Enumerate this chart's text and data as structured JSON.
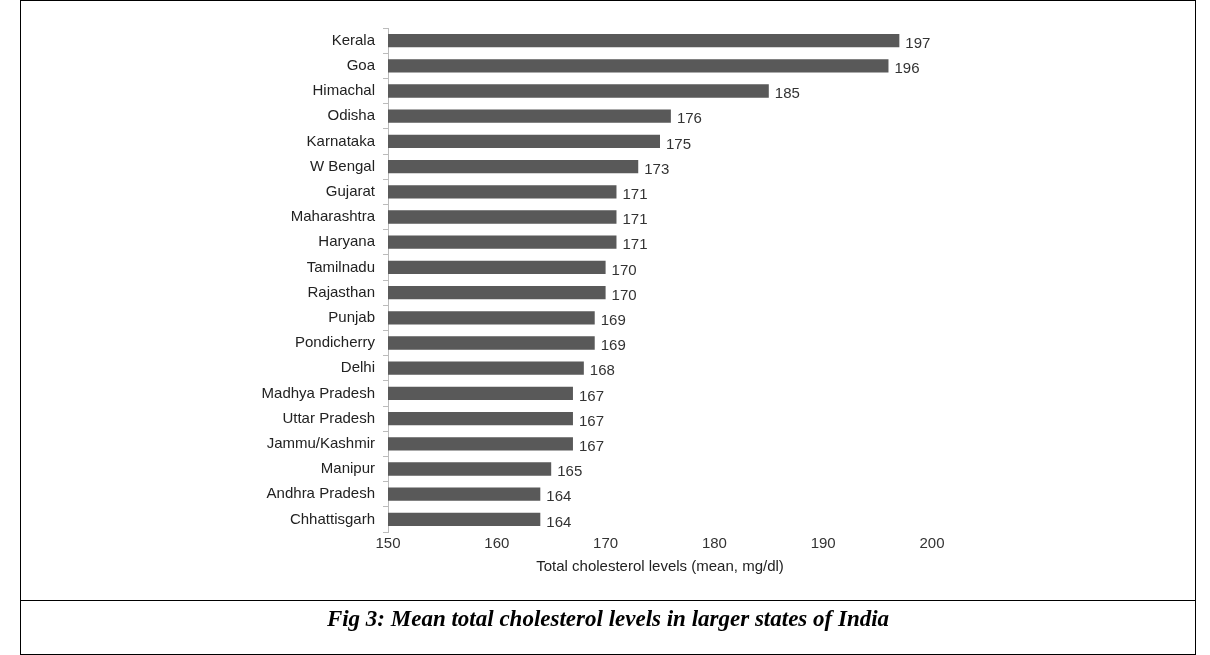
{
  "chart_data": {
    "type": "bar",
    "orientation": "horizontal",
    "title": "Fig 3:  Mean total cholesterol levels in larger states of India",
    "xlabel": "Total cholesterol levels (mean, mg/dl)",
    "categories": [
      "Kerala",
      "Goa",
      "Himachal",
      "Odisha",
      "Karnataka",
      "W Bengal",
      "Gujarat",
      "Maharashtra",
      "Haryana",
      "Tamilnadu",
      "Rajasthan",
      "Punjab",
      "Pondicherry",
      "Delhi",
      "Madhya Pradesh",
      "Uttar Pradesh",
      "Jammu/Kashmir",
      "Manipur",
      "Andhra Pradesh",
      "Chhattisgarh"
    ],
    "values": [
      197,
      196,
      185,
      176,
      175,
      173,
      171,
      171,
      171,
      170,
      170,
      169,
      169,
      168,
      167,
      167,
      167,
      165,
      164,
      164
    ],
    "color": "#595959",
    "xlim": [
      150,
      200
    ],
    "xticks": [
      150,
      160,
      170,
      180,
      190,
      200
    ],
    "grid": false,
    "legend": false,
    "data_labels": true
  }
}
